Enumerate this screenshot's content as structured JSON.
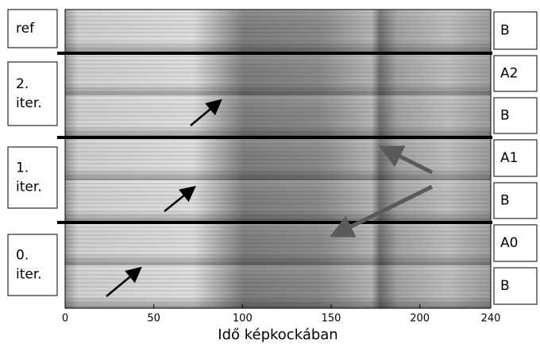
{
  "chart_data": {
    "type": "spectrogram",
    "xlabel": "Idő képkockában",
    "xlim": [
      0,
      240
    ],
    "xticks": [
      0,
      50,
      100,
      150,
      200,
      240
    ],
    "left_labels": [
      [
        "ref"
      ],
      [
        "2.",
        "iter."
      ],
      [
        "1.",
        "iter."
      ],
      [
        "0.",
        "iter."
      ]
    ],
    "right_labels": [
      "B",
      "A2",
      "B",
      "A1",
      "B",
      "A0",
      "B"
    ]
  }
}
